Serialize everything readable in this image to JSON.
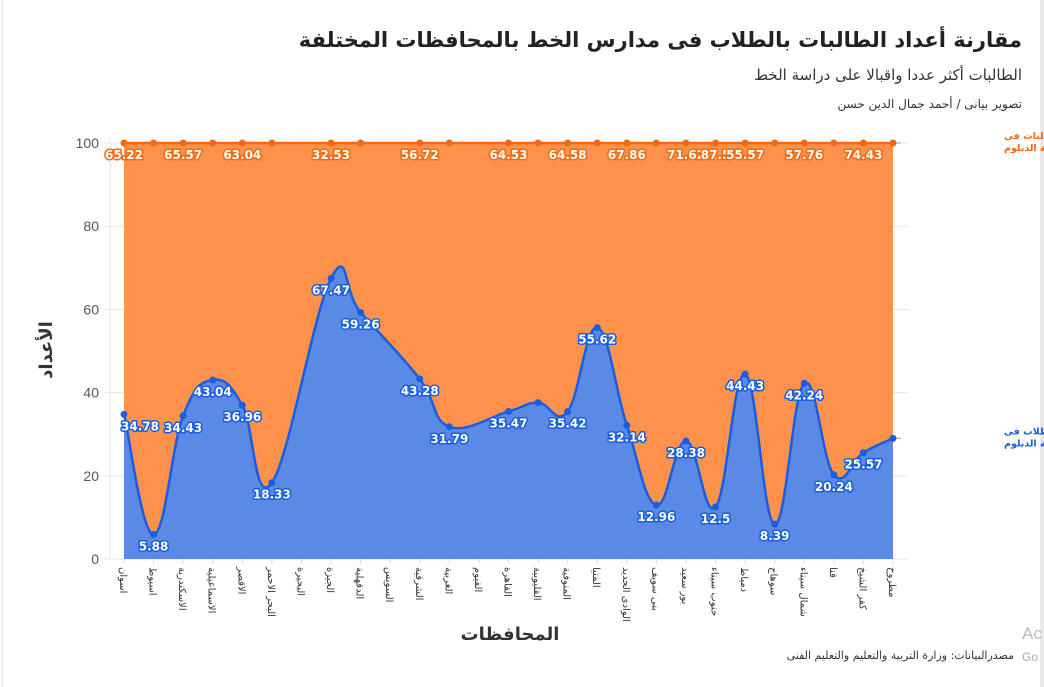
{
  "header": {
    "title": "مقارنة أعداد الطالبات بالطلاب فى مدارس الخط بالمحافظات المختلفة",
    "subtitle": "الطالبات أكثر عددا واقبالا على دراسة الخط",
    "credit": "تصوير بيانى / أحمد جمال الدين حسن"
  },
  "footer": {
    "source": "مصدرالبيانات: وزارة التربية والتعليم والتعليم الفنى",
    "watermark_1": "Ac",
    "watermark_2": "Go"
  },
  "chart_data": {
    "type": "area",
    "stacked": "percent",
    "xlabel": "المحافظات",
    "ylabel": "الأعداد",
    "ylim": [
      0,
      100
    ],
    "yticks": [
      0,
      20,
      40,
      60,
      80,
      100
    ],
    "grid": true,
    "legend": "inline-right",
    "categories": [
      "اسوان",
      "اسيوط",
      "الاسكندرية",
      "الاسماعيلية",
      "الاقصر",
      "البحر الاحمر",
      "البحيرة",
      "الجيزة",
      "الدقهلية",
      "السويس",
      "الشرقية",
      "الغربية",
      "الفيوم",
      "القاهرة",
      "القليوبية",
      "المنوفية",
      "المنيا",
      "الوادى الجديد",
      "بنى سويف",
      "بور سعيد",
      "جنوب سيناء",
      "دمياط",
      "سوهاج",
      "شمال سيناء",
      "قنا",
      "كفر الشيخ",
      "مطروح"
    ],
    "series": [
      {
        "name": "جملة أعداد الطلاب فى مرحلة الدبلوم",
        "color": "#1a5ee0",
        "fill": "#5a8ae6",
        "values": [
          34.78,
          5.88,
          34.43,
          43.04,
          36.96,
          18.33,
          null,
          67.47,
          59.26,
          null,
          43.28,
          31.79,
          null,
          35.47,
          37.6,
          35.42,
          55.62,
          32.14,
          12.96,
          28.38,
          12.5,
          44.43,
          8.39,
          42.24,
          20.24,
          25.57,
          29.0
        ],
        "printed_labels": [
          "34.78",
          "5.88",
          "34.43",
          "43.04",
          "36.96",
          "18.33",
          null,
          "67.47",
          "59.26",
          null,
          "43.28",
          "31.79",
          null,
          "35.47",
          null,
          "35.42",
          "55.62",
          "32.14",
          "12.96",
          "28.38",
          "12.5",
          "44.43",
          "8.39",
          "42.24",
          "20.24",
          "25.57",
          null
        ]
      },
      {
        "name": "جمله اعداد الطالبات فى مرحلة الدبلوم",
        "color": "#f26a0f",
        "fill": "#fe914b",
        "values": [
          65.22,
          94.12,
          65.57,
          56.96,
          63.04,
          81.67,
          null,
          32.53,
          40.74,
          null,
          56.72,
          68.21,
          null,
          64.53,
          62.4,
          64.58,
          44.38,
          67.86,
          87.04,
          71.62,
          87.5,
          55.57,
          91.61,
          57.76,
          79.76,
          74.43,
          71.0
        ],
        "printed_labels": [
          "65.22",
          null,
          "65.57",
          null,
          "63.04",
          null,
          null,
          "32.53",
          null,
          null,
          "56.72",
          null,
          null,
          "64.53",
          null,
          "64.58",
          null,
          "67.86",
          null,
          "71.62",
          "87.5",
          "55.57",
          null,
          "57.76",
          null,
          "74.43",
          null
        ]
      }
    ]
  }
}
